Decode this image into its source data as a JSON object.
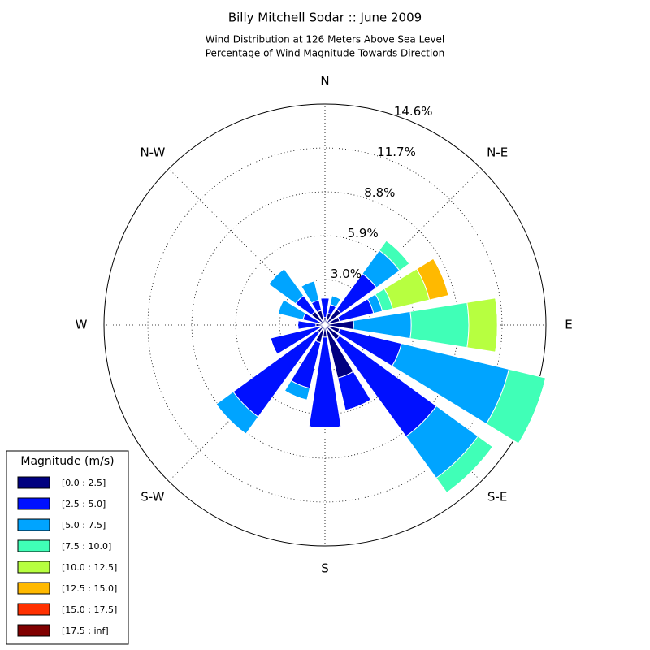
{
  "chart_data": {
    "type": "windrose",
    "title": "Billy Mitchell Sodar :: June 2009",
    "subtitle": [
      "Wind Distribution at 126 Meters Above Sea Level",
      "Percentage of Wind Magnitude Towards Direction"
    ],
    "categories": [
      "N",
      null,
      "N-E",
      null,
      "E",
      null,
      "S-E",
      null,
      "S",
      null,
      "S-W",
      null,
      "W",
      null,
      "N-W",
      null
    ],
    "rlim": [
      0,
      14.6
    ],
    "rticks": [
      {
        "value": 3.0,
        "label": "3.0%"
      },
      {
        "value": 5.9,
        "label": "5.9%"
      },
      {
        "value": 8.8,
        "label": "8.8%"
      },
      {
        "value": 11.7,
        "label": "11.7%"
      },
      {
        "value": 14.6,
        "label": "14.6%"
      }
    ],
    "grid": true,
    "legend_title": "Magnitude (m/s)",
    "legend_position": "lower left",
    "series": [
      {
        "name": "[0.0 : 2.5]",
        "color": "#000080",
        "values": [
          0.5,
          0.8,
          1.3,
          1.0,
          1.9,
          1.0,
          1.2,
          3.6,
          0.8,
          1.2,
          0.6,
          0.3,
          0.6,
          0.5,
          1.1,
          1.0
        ]
      },
      {
        "name": "[2.5 : 5.0]",
        "color": "#0010ff",
        "values": [
          1.3,
          0.6,
          2.9,
          2.3,
          0,
          4.2,
          7.9,
          2.2,
          6.0,
          3.1,
          6.9,
          3.4,
          1.2,
          1.0,
          1.3,
          0.7
        ]
      },
      {
        "name": "[5.0 : 7.5]",
        "color": "#00a4ff",
        "values": [
          0,
          0.6,
          1.9,
          0.6,
          3.8,
          7.3,
          3.4,
          0,
          0,
          0.8,
          1.4,
          0,
          0,
          1.7,
          2.2,
          1.3
        ]
      },
      {
        "name": "[7.5 : 10.0]",
        "color": "#40ffb7",
        "values": [
          0,
          0,
          0.8,
          0.7,
          3.8,
          2.5,
          1.2,
          0,
          0,
          0,
          0,
          0,
          0,
          0,
          0,
          0
        ]
      },
      {
        "name": "[10.0 : 12.5]",
        "color": "#b7ff40",
        "values": [
          0,
          0,
          0,
          2.5,
          1.9,
          0,
          0,
          0,
          0,
          0,
          0,
          0,
          0,
          0,
          0,
          0
        ]
      },
      {
        "name": "[12.5 : 15.0]",
        "color": "#ffb900",
        "values": [
          0,
          0,
          0,
          1.3,
          0,
          0,
          0,
          0,
          0,
          0,
          0,
          0,
          0,
          0,
          0,
          0
        ]
      },
      {
        "name": "[15.0 : 17.5]",
        "color": "#ff3000",
        "values": [
          0,
          0,
          0,
          0,
          0,
          0,
          0,
          0,
          0,
          0,
          0,
          0,
          0,
          0,
          0,
          0
        ]
      },
      {
        "name": "[17.5 : inf]",
        "color": "#800000",
        "values": [
          0,
          0,
          0,
          0,
          0,
          0,
          0,
          0,
          0,
          0,
          0,
          0,
          0,
          0,
          0,
          0
        ]
      }
    ]
  }
}
